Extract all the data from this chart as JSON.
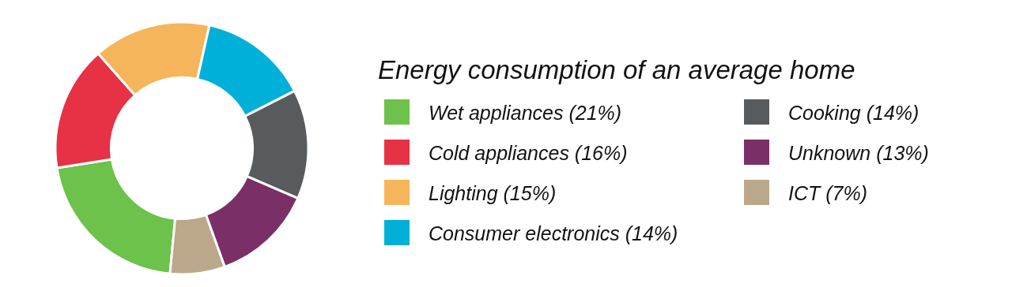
{
  "chart_data": {
    "type": "donut",
    "title": "Energy consumption of an average home",
    "categories": [
      "Wet appliances (21%)",
      "Cold appliances (16%)",
      "Lighting (15%)",
      "Consumer electronics (14%)",
      "Cooking (14%)",
      "Unknown (13%)",
      "ICT (7%)"
    ],
    "values": [
      21,
      16,
      15,
      14,
      14,
      13,
      7
    ],
    "colors": [
      "#6cc24a",
      "#e63244",
      "#f5b55a",
      "#00b0d8",
      "#575b5e",
      "#7a3067",
      "#bba88a"
    ],
    "legend": "right"
  }
}
